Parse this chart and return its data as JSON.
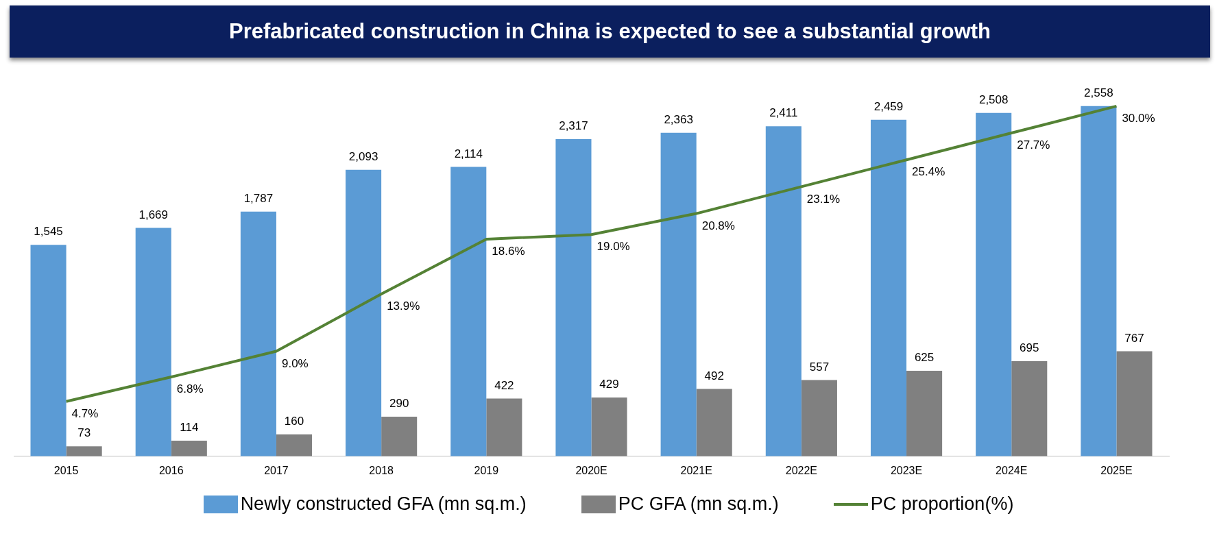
{
  "chart_data": {
    "type": "bar",
    "title": "Prefabricated construction in China is expected to see a substantial growth",
    "categories": [
      "2015",
      "2016",
      "2017",
      "2018",
      "2019",
      "2020E",
      "2021E",
      "2022E",
      "2023E",
      "2024E",
      "2025E"
    ],
    "series": [
      {
        "name": "Newly constructed GFA (mn sq.m.)",
        "color": "#5b9bd5",
        "values": [
          1545,
          1669,
          1787,
          2093,
          2114,
          2317,
          2363,
          2411,
          2459,
          2508,
          2558
        ],
        "value_labels": [
          "1,545",
          "1,669",
          "1,787",
          "2,093",
          "2,114",
          "2,317",
          "2,363",
          "2,411",
          "2,459",
          "2,508",
          "2,558"
        ]
      },
      {
        "name": "PC GFA (mn sq.m.)",
        "color": "#808080",
        "values": [
          73,
          114,
          160,
          290,
          422,
          429,
          492,
          557,
          625,
          695,
          767
        ]
      },
      {
        "name": "PC proportion(%)",
        "type": "line",
        "axis": "y2",
        "color": "#548235",
        "values": [
          4.7,
          6.8,
          9.0,
          13.9,
          18.6,
          19.0,
          20.8,
          23.1,
          25.4,
          27.7,
          30.0
        ],
        "value_labels": [
          "4.7%",
          "6.8%",
          "9.0%",
          "13.9%",
          "18.6%",
          "19.0%",
          "20.8%",
          "23.1%",
          "25.4%",
          "27.7%",
          "30.0%"
        ]
      }
    ],
    "data_labels": true,
    "tick_labels": "x",
    "grid": false,
    "legend": "bottom",
    "marker": "none"
  }
}
